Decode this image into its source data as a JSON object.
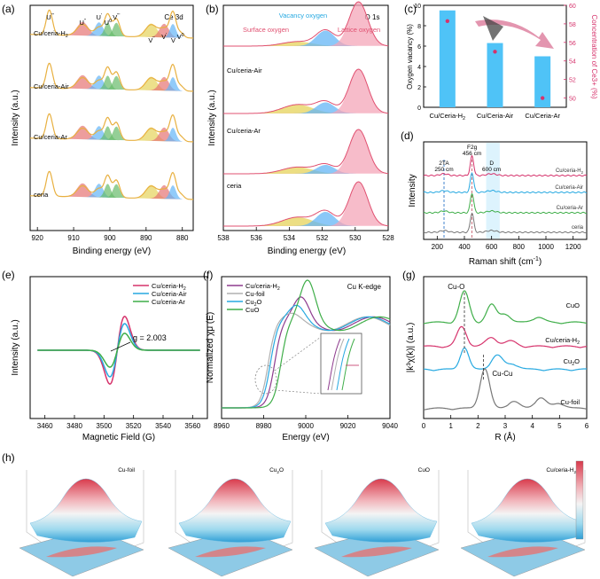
{
  "colors": {
    "teal": "#27a9e1",
    "cyan_bar": "#4fc3f7",
    "magenta": "#d6336c",
    "purple": "#8e3b8e",
    "green": "#3fae49",
    "gray": "#777777",
    "red_fill": "#e57373",
    "blue_fill": "#64b5f6",
    "green_fill": "#66bb6a",
    "yellow_fill": "#e6d35a",
    "pink_fill": "#f4a6b8"
  },
  "chart_data": [
    {
      "panel": "(a)",
      "type": "line",
      "title": "Ce 3d",
      "xlabel": "Binding energy (eV)",
      "ylabel": "Intensity (a.u.)",
      "xticks": [
        "920",
        "910",
        "900",
        "890",
        "880"
      ],
      "xlim": [
        922,
        877
      ],
      "series": [
        {
          "name": "Cu/ceria-H2",
          "label": "Cu/ceria-H",
          "sub": "2"
        },
        {
          "name": "Cu/ceria-Air",
          "label": "Cu/ceria-Air",
          "sub": ""
        },
        {
          "name": "Cu/ceria-Ar",
          "label": "Cu/ceria-Ar",
          "sub": ""
        },
        {
          "name": "ceria",
          "label": "ceria",
          "sub": ""
        }
      ],
      "peaks": [
        {
          "label": "U",
          "sup": "'''",
          "x": 916.5
        },
        {
          "label": "U",
          "sup": "''",
          "x": 907.5
        },
        {
          "label": "U",
          "sup": "'",
          "x": 903
        },
        {
          "label": "U",
          "sup": "0",
          "x": 900.5
        },
        {
          "label": "V",
          "sup": "'''",
          "x": 898.2
        },
        {
          "label": "V",
          "sup": "''",
          "x": 888.5
        },
        {
          "label": "V",
          "sup": "'",
          "x": 885
        },
        {
          "label": "V",
          "sup": "",
          "x": 882.5
        },
        {
          "label": "V",
          "sup": "0",
          "x": 880.5
        }
      ]
    },
    {
      "panel": "(b)",
      "type": "line",
      "title": "O 1s",
      "xlabel": "Binding energy (eV)",
      "ylabel": "Intensity (a.u.)",
      "xticks": [
        "538",
        "536",
        "534",
        "532",
        "530",
        "528"
      ],
      "xlim": [
        538,
        528
      ],
      "series": [
        "Cu/ceria-Air",
        "Cu/ceria-Ar",
        "ceria"
      ],
      "components": [
        {
          "name": "Surface oxygen",
          "center": 533.5
        },
        {
          "name": "Vacancy oxygen",
          "center": 531.8
        },
        {
          "name": "Lattice oxygen",
          "center": 529.8
        }
      ]
    },
    {
      "panel": "(c)",
      "type": "bar",
      "categories": [
        "Cu/Ceria-H2",
        "Cu/Ceria-Air",
        "Cu/Ceria-Ar"
      ],
      "category_labels": [
        [
          "Cu/Ceria-H",
          "2"
        ],
        [
          "Cu/Ceria-Air",
          ""
        ],
        [
          "Cu/Ceria-Ar",
          ""
        ]
      ],
      "values": [
        9.5,
        6.3,
        5.0
      ],
      "ylabel": "Oxygen vacancy (%)",
      "ylim": [
        0,
        10
      ],
      "yticks": [
        "0",
        "2",
        "4",
        "6",
        "8",
        "10"
      ],
      "y2label": "Concentration of Ce3+ (%)",
      "y2": [
        58.3,
        55.0,
        50.0
      ],
      "y2lim": [
        49,
        60
      ],
      "y2ticks": [
        "50",
        "52",
        "54",
        "56",
        "58",
        "60"
      ]
    },
    {
      "panel": "(d)",
      "type": "line",
      "xlabel": "Raman shift (cm",
      "xlabel_sup": "-1",
      "xlabel_end": ")",
      "ylabel": "Intensity",
      "xlim": [
        100,
        1300
      ],
      "xticks": [
        "200",
        "400",
        "600",
        "800",
        "1000",
        "1200"
      ],
      "series": [
        {
          "name": "Cu/ceria-H2",
          "label": "Cu/ceria-H",
          "sub": "2"
        },
        {
          "name": "Cu/ceria-Air",
          "label": "Cu/ceria-Air",
          "sub": ""
        },
        {
          "name": "Cu/ceria-Ar",
          "label": "Cu/ceria-Ar",
          "sub": ""
        },
        {
          "name": "ceria",
          "label": "ceria",
          "sub": ""
        }
      ],
      "annotations": [
        {
          "label": "2TA",
          "value": "250 cm",
          "x": 250
        },
        {
          "label": "F2g",
          "value": "456 cm",
          "x": 456
        },
        {
          "label": "D",
          "value": "600 cm",
          "x": 600
        }
      ]
    },
    {
      "panel": "(e)",
      "type": "line",
      "xlabel": "Magnetic Field (G)",
      "ylabel": "Intensity (a.u.)",
      "xlim": [
        3450,
        3570
      ],
      "xticks": [
        "3460",
        "3480",
        "3500",
        "3520",
        "3540",
        "3560"
      ],
      "annotation": "g = 2.003",
      "series": [
        {
          "name": "Cu/ceria-H2",
          "label": "Cu/ceria-H",
          "sub": "2"
        },
        {
          "name": "Cu/ceria-Air",
          "label": "Cu/ceria-Air",
          "sub": ""
        },
        {
          "name": "Cu/ceria-Ar",
          "label": "Cu/ceria-Ar",
          "sub": ""
        }
      ]
    },
    {
      "panel": "(f)",
      "type": "line",
      "title": "Cu K-edge",
      "xlabel": "Energy (eV)",
      "ylabel": "Normalized χμ (E)",
      "xlim": [
        8960,
        9040
      ],
      "xticks": [
        "8960",
        "8980",
        "9000",
        "9020",
        "9040"
      ],
      "series": [
        {
          "name": "Cu/ceria-H2",
          "label": "Cu/ceria-H",
          "sub": "2"
        },
        {
          "name": "Cu-foil",
          "label": "Cu-foil",
          "sub": ""
        },
        {
          "name": "Cu2O",
          "label": "Cu",
          "sub": "2",
          "tail": "O"
        },
        {
          "name": "CuO",
          "label": "CuO",
          "sub": ""
        }
      ]
    },
    {
      "panel": "(g)",
      "type": "line",
      "xlabel": "R (Å)",
      "ylabel": "|k³χ(k)| (a.u.)",
      "xlim": [
        0,
        6
      ],
      "xticks": [
        "0",
        "1",
        "2",
        "3",
        "4",
        "5",
        "6"
      ],
      "annotations": [
        {
          "label": "Cu-O",
          "x": 1.5
        },
        {
          "label": "Cu-Cu",
          "x": 2.2
        }
      ],
      "series": [
        {
          "name": "CuO",
          "label": "CuO",
          "sub": ""
        },
        {
          "name": "Cu/ceria-H2",
          "label": "Cu/ceria-H",
          "sub": "2"
        },
        {
          "name": "Cu2O",
          "label": "Cu",
          "sub": "2",
          "tail": "O"
        },
        {
          "name": "Cu-foil",
          "label": "Cu-foil",
          "sub": ""
        }
      ]
    },
    {
      "panel": "(h)",
      "type": "heatmap",
      "subplots": [
        {
          "label": "Cu-foil",
          "sub": "",
          "tail": ""
        },
        {
          "label": "Cu",
          "sub": "2",
          "tail": "O"
        },
        {
          "label": "CuO",
          "sub": "",
          "tail": ""
        },
        {
          "label": "Cu/ceria-H",
          "sub": "2",
          "tail": ""
        }
      ]
    }
  ],
  "panel_labels": [
    "(a)",
    "(b)",
    "(c)",
    "(d)",
    "(e)",
    "(f)",
    "(g)",
    "(h)"
  ]
}
